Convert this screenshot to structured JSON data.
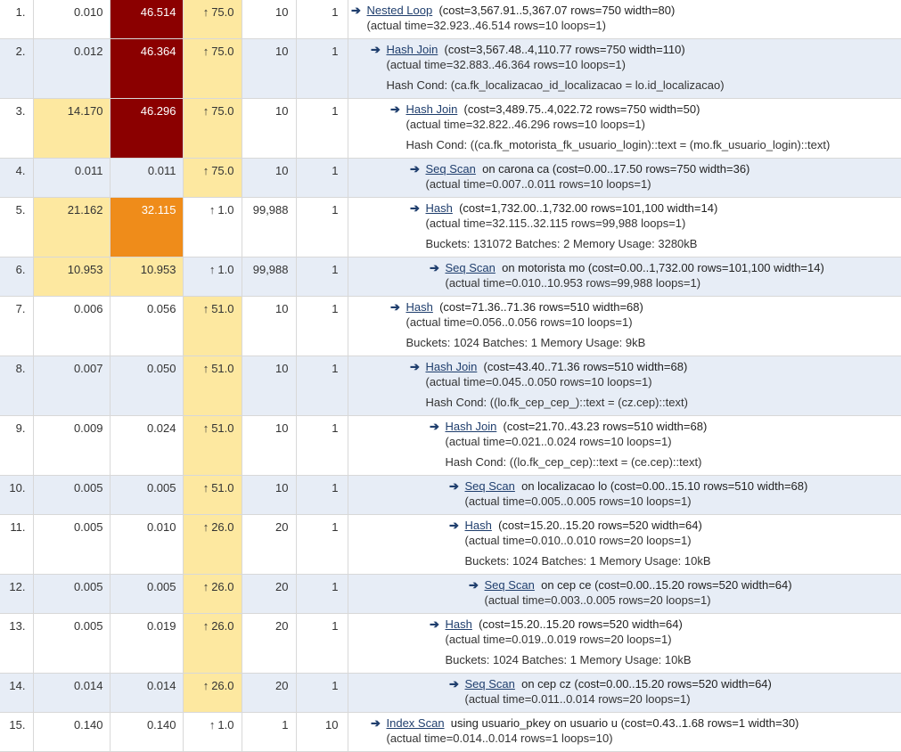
{
  "arrow_glyph": "➔",
  "est_arrow_glyph": "↑",
  "rows": [
    {
      "num": "1.",
      "exclusive": "0.010",
      "inclusive": "46.514",
      "estimate": "75.0",
      "rows": "10",
      "loops": "1",
      "node_type": "Nested Loop",
      "details": "(cost=3,567.91..5,367.07 rows=750 width=80)",
      "actual": "(actual time=32.923..46.514 rows=10 loops=1)",
      "extra": ""
    },
    {
      "num": "2.",
      "exclusive": "0.012",
      "inclusive": "46.364",
      "estimate": "75.0",
      "rows": "10",
      "loops": "1",
      "node_type": "Hash Join",
      "details": "(cost=3,567.48..4,110.77 rows=750 width=110)",
      "actual": "(actual time=32.883..46.364 rows=10 loops=1)",
      "extra": "Hash Cond: (ca.fk_localizacao_id_localizacao = lo.id_localizacao)"
    },
    {
      "num": "3.",
      "exclusive": "14.170",
      "inclusive": "46.296",
      "estimate": "75.0",
      "rows": "10",
      "loops": "1",
      "node_type": "Hash Join",
      "details": "(cost=3,489.75..4,022.72 rows=750 width=50)",
      "actual": "(actual time=32.822..46.296 rows=10 loops=1)",
      "extra": "Hash Cond: ((ca.fk_motorista_fk_usuario_login)::text = (mo.fk_usuario_login)::text)"
    },
    {
      "num": "4.",
      "exclusive": "0.011",
      "inclusive": "0.011",
      "estimate": "75.0",
      "rows": "10",
      "loops": "1",
      "node_type": "Seq Scan",
      "details": "on carona ca (cost=0.00..17.50 rows=750 width=36)",
      "actual": "(actual time=0.007..0.011 rows=10 loops=1)",
      "extra": ""
    },
    {
      "num": "5.",
      "exclusive": "21.162",
      "inclusive": "32.115",
      "estimate": "1.0",
      "rows": "99,988",
      "loops": "1",
      "node_type": "Hash",
      "details": "(cost=1,732.00..1,732.00 rows=101,100 width=14)",
      "actual": "(actual time=32.115..32.115 rows=99,988 loops=1)",
      "extra": "Buckets: 131072 Batches: 2 Memory Usage: 3280kB"
    },
    {
      "num": "6.",
      "exclusive": "10.953",
      "inclusive": "10.953",
      "estimate": "1.0",
      "rows": "99,988",
      "loops": "1",
      "node_type": "Seq Scan",
      "details": "on motorista mo (cost=0.00..1,732.00 rows=101,100 width=14)",
      "actual": "(actual time=0.010..10.953 rows=99,988 loops=1)",
      "extra": ""
    },
    {
      "num": "7.",
      "exclusive": "0.006",
      "inclusive": "0.056",
      "estimate": "51.0",
      "rows": "10",
      "loops": "1",
      "node_type": "Hash",
      "details": "(cost=71.36..71.36 rows=510 width=68)",
      "actual": "(actual time=0.056..0.056 rows=10 loops=1)",
      "extra": "Buckets: 1024 Batches: 1 Memory Usage: 9kB"
    },
    {
      "num": "8.",
      "exclusive": "0.007",
      "inclusive": "0.050",
      "estimate": "51.0",
      "rows": "10",
      "loops": "1",
      "node_type": "Hash Join",
      "details": "(cost=43.40..71.36 rows=510 width=68)",
      "actual": "(actual time=0.045..0.050 rows=10 loops=1)",
      "extra": "Hash Cond: ((lo.fk_cep_cep_)::text = (cz.cep)::text)"
    },
    {
      "num": "9.",
      "exclusive": "0.009",
      "inclusive": "0.024",
      "estimate": "51.0",
      "rows": "10",
      "loops": "1",
      "node_type": "Hash Join",
      "details": "(cost=21.70..43.23 rows=510 width=68)",
      "actual": "(actual time=0.021..0.024 rows=10 loops=1)",
      "extra": "Hash Cond: ((lo.fk_cep_cep)::text = (ce.cep)::text)"
    },
    {
      "num": "10.",
      "exclusive": "0.005",
      "inclusive": "0.005",
      "estimate": "51.0",
      "rows": "10",
      "loops": "1",
      "node_type": "Seq Scan",
      "details": "on localizacao lo (cost=0.00..15.10 rows=510 width=68)",
      "actual": "(actual time=0.005..0.005 rows=10 loops=1)",
      "extra": ""
    },
    {
      "num": "11.",
      "exclusive": "0.005",
      "inclusive": "0.010",
      "estimate": "26.0",
      "rows": "20",
      "loops": "1",
      "node_type": "Hash",
      "details": "(cost=15.20..15.20 rows=520 width=64)",
      "actual": "(actual time=0.010..0.010 rows=20 loops=1)",
      "extra": "Buckets: 1024 Batches: 1 Memory Usage: 10kB"
    },
    {
      "num": "12.",
      "exclusive": "0.005",
      "inclusive": "0.005",
      "estimate": "26.0",
      "rows": "20",
      "loops": "1",
      "node_type": "Seq Scan",
      "details": "on cep ce (cost=0.00..15.20 rows=520 width=64)",
      "actual": "(actual time=0.003..0.005 rows=20 loops=1)",
      "extra": ""
    },
    {
      "num": "13.",
      "exclusive": "0.005",
      "inclusive": "0.019",
      "estimate": "26.0",
      "rows": "20",
      "loops": "1",
      "node_type": "Hash",
      "details": "(cost=15.20..15.20 rows=520 width=64)",
      "actual": "(actual time=0.019..0.019 rows=20 loops=1)",
      "extra": "Buckets: 1024 Batches: 1 Memory Usage: 10kB"
    },
    {
      "num": "14.",
      "exclusive": "0.014",
      "inclusive": "0.014",
      "estimate": "26.0",
      "rows": "20",
      "loops": "1",
      "node_type": "Seq Scan",
      "details": "on cep cz (cost=0.00..15.20 rows=520 width=64)",
      "actual": "(actual time=0.011..0.014 rows=20 loops=1)",
      "extra": ""
    },
    {
      "num": "15.",
      "exclusive": "0.140",
      "inclusive": "0.140",
      "estimate": "1.0",
      "rows": "1",
      "loops": "10",
      "node_type": "Index Scan",
      "details": "using usuario_pkey on usuario u (cost=0.43..1.68 rows=1 width=30)",
      "actual": "(actual time=0.014..0.014 rows=1 loops=10)",
      "extra": ""
    }
  ]
}
